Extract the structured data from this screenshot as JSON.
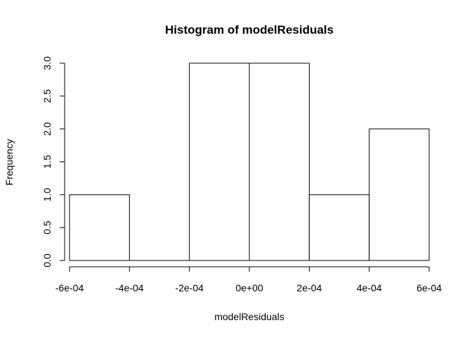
{
  "chart_data": {
    "type": "bar",
    "title": "Histogram of modelResiduals",
    "xlabel": "modelResiduals",
    "ylabel": "Frequency",
    "bins": [
      {
        "start": -0.0006,
        "end": -0.0004,
        "count": 1
      },
      {
        "start": -0.0004,
        "end": -0.0002,
        "count": 0
      },
      {
        "start": -0.0002,
        "end": 0.0,
        "count": 3
      },
      {
        "start": 0.0,
        "end": 0.0002,
        "count": 3
      },
      {
        "start": 0.0002,
        "end": 0.0004,
        "count": 1
      },
      {
        "start": 0.0004,
        "end": 0.0006,
        "count": 2
      }
    ],
    "xlim": [
      -0.0006,
      0.0006
    ],
    "ylim": [
      0,
      3
    ],
    "x_ticks": [
      -0.0006,
      -0.0004,
      -0.0002,
      0.0,
      0.0002,
      0.0004,
      0.0006
    ],
    "x_tick_labels": [
      "-6e-04",
      "-4e-04",
      "-2e-04",
      "0e+00",
      "2e-04",
      "4e-04",
      "6e-04"
    ],
    "y_ticks": [
      0,
      0.5,
      1,
      1.5,
      2,
      2.5,
      3
    ],
    "y_tick_labels": [
      "0.0",
      "0.5",
      "1.0",
      "1.5",
      "2.0",
      "2.5",
      "3.0"
    ],
    "grid": false,
    "bar_fill": "#ffffff",
    "bar_stroke": "#000000"
  }
}
